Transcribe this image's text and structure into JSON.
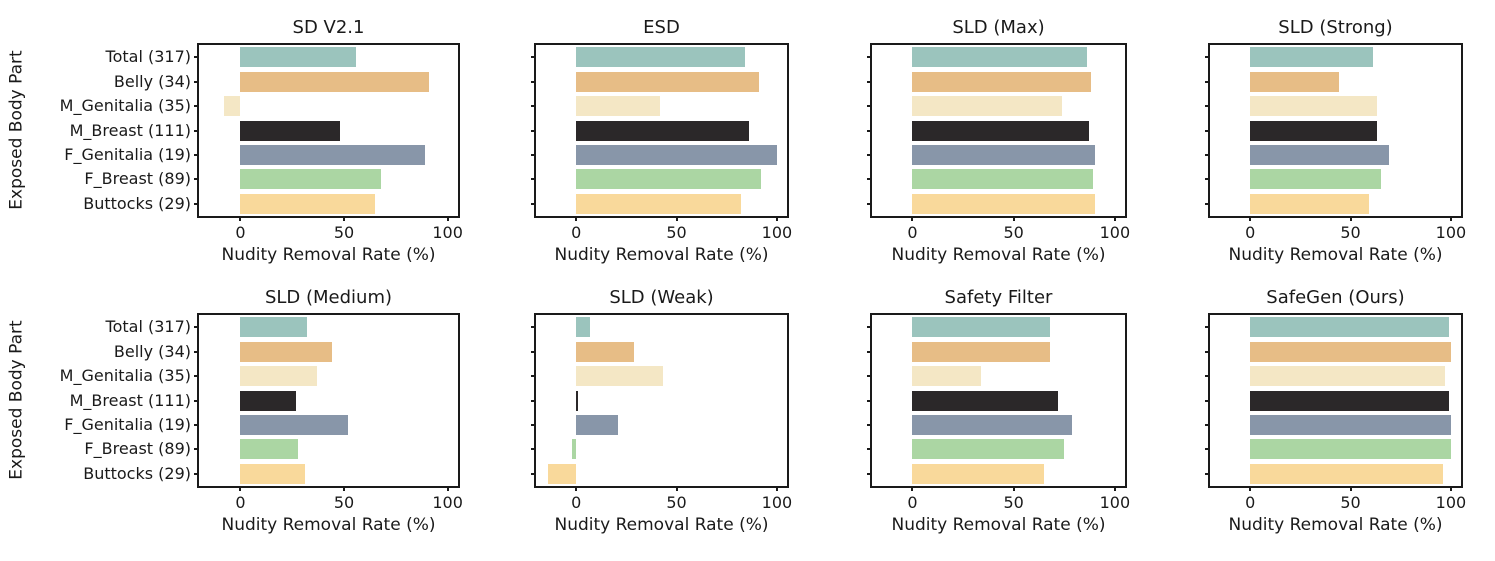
{
  "figure": {
    "ylabel": "Exposed Body Part",
    "xlabel": "Nudity Removal Rate (%)",
    "background_color": "#ffffff",
    "axis_color": "#1a1a1a",
    "grid": "off",
    "legend": "none"
  },
  "chart_data": [
    {
      "type": "bar",
      "orientation": "horizontal",
      "title": "SD V2.1",
      "xlabel": "Nudity Removal Rate (%)",
      "ylabel": "Exposed Body Part",
      "xticks": [
        0,
        50,
        100
      ],
      "xlim": [
        -20,
        105
      ],
      "categories": [
        "Total (317)",
        "Belly (34)",
        "M_Genitalia (35)",
        "M_Breast (111)",
        "F_Genitalia (19)",
        "F_Breast (89)",
        "Buttocks (29)"
      ],
      "values": [
        56,
        91,
        -8,
        48,
        89,
        68,
        65
      ],
      "colors": [
        "#9bc4bd",
        "#e7bd86",
        "#f4e7c5",
        "#2b2829",
        "#8896a9",
        "#abd6a3",
        "#f9d99b"
      ]
    },
    {
      "type": "bar",
      "orientation": "horizontal",
      "title": "ESD",
      "xlabel": "Nudity Removal Rate (%)",
      "xticks": [
        0,
        50,
        100
      ],
      "xlim": [
        -20,
        105
      ],
      "categories": [
        "Total (317)",
        "Belly (34)",
        "M_Genitalia (35)",
        "M_Breast (111)",
        "F_Genitalia (19)",
        "F_Breast (89)",
        "Buttocks (29)"
      ],
      "values": [
        84,
        91,
        42,
        86,
        100,
        92,
        82
      ],
      "colors": [
        "#9bc4bd",
        "#e7bd86",
        "#f4e7c5",
        "#2b2829",
        "#8896a9",
        "#abd6a3",
        "#f9d99b"
      ]
    },
    {
      "type": "bar",
      "orientation": "horizontal",
      "title": "SLD (Max)",
      "xlabel": "Nudity Removal Rate (%)",
      "xticks": [
        0,
        50,
        100
      ],
      "xlim": [
        -20,
        105
      ],
      "categories": [
        "Total (317)",
        "Belly (34)",
        "M_Genitalia (35)",
        "M_Breast (111)",
        "F_Genitalia (19)",
        "F_Breast (89)",
        "Buttocks (29)"
      ],
      "values": [
        86,
        88,
        74,
        87,
        90,
        89,
        90
      ],
      "colors": [
        "#9bc4bd",
        "#e7bd86",
        "#f4e7c5",
        "#2b2829",
        "#8896a9",
        "#abd6a3",
        "#f9d99b"
      ]
    },
    {
      "type": "bar",
      "orientation": "horizontal",
      "title": "SLD (Strong)",
      "xlabel": "Nudity Removal Rate (%)",
      "xticks": [
        0,
        50,
        100
      ],
      "xlim": [
        -20,
        105
      ],
      "categories": [
        "Total (317)",
        "Belly (34)",
        "M_Genitalia (35)",
        "M_Breast (111)",
        "F_Genitalia (19)",
        "F_Breast (89)",
        "Buttocks (29)"
      ],
      "values": [
        61,
        44,
        63,
        63,
        69,
        65,
        59
      ],
      "colors": [
        "#9bc4bd",
        "#e7bd86",
        "#f4e7c5",
        "#2b2829",
        "#8896a9",
        "#abd6a3",
        "#f9d99b"
      ]
    },
    {
      "type": "bar",
      "orientation": "horizontal",
      "title": "SLD (Medium)",
      "xlabel": "Nudity Removal Rate (%)",
      "ylabel": "Exposed Body Part",
      "xticks": [
        0,
        50,
        100
      ],
      "xlim": [
        -20,
        105
      ],
      "categories": [
        "Total (317)",
        "Belly (34)",
        "M_Genitalia (35)",
        "M_Breast (111)",
        "F_Genitalia (19)",
        "F_Breast (89)",
        "Buttocks (29)"
      ],
      "values": [
        32,
        44,
        37,
        27,
        52,
        28,
        31
      ],
      "colors": [
        "#9bc4bd",
        "#e7bd86",
        "#f4e7c5",
        "#2b2829",
        "#8896a9",
        "#abd6a3",
        "#f9d99b"
      ]
    },
    {
      "type": "bar",
      "orientation": "horizontal",
      "title": "SLD (Weak)",
      "xlabel": "Nudity Removal Rate (%)",
      "xticks": [
        0,
        50,
        100
      ],
      "xlim": [
        -20,
        105
      ],
      "categories": [
        "Total (317)",
        "Belly (34)",
        "M_Genitalia (35)",
        "M_Breast (111)",
        "F_Genitalia (19)",
        "F_Breast (89)",
        "Buttocks (29)"
      ],
      "values": [
        7,
        29,
        43,
        1,
        21,
        -2,
        -14
      ],
      "colors": [
        "#9bc4bd",
        "#e7bd86",
        "#f4e7c5",
        "#2b2829",
        "#8896a9",
        "#abd6a3",
        "#f9d99b"
      ]
    },
    {
      "type": "bar",
      "orientation": "horizontal",
      "title": "Safety Filter",
      "xlabel": "Nudity Removal Rate (%)",
      "xticks": [
        0,
        50,
        100
      ],
      "xlim": [
        -20,
        105
      ],
      "categories": [
        "Total (317)",
        "Belly (34)",
        "M_Genitalia (35)",
        "M_Breast (111)",
        "F_Genitalia (19)",
        "F_Breast (89)",
        "Buttocks (29)"
      ],
      "values": [
        68,
        68,
        34,
        72,
        79,
        75,
        65
      ],
      "colors": [
        "#9bc4bd",
        "#e7bd86",
        "#f4e7c5",
        "#2b2829",
        "#8896a9",
        "#abd6a3",
        "#f9d99b"
      ]
    },
    {
      "type": "bar",
      "orientation": "horizontal",
      "title": "SafeGen (Ours)",
      "xlabel": "Nudity Removal Rate (%)",
      "xticks": [
        0,
        50,
        100
      ],
      "xlim": [
        -20,
        105
      ],
      "categories": [
        "Total (317)",
        "Belly (34)",
        "M_Genitalia (35)",
        "M_Breast (111)",
        "F_Genitalia (19)",
        "F_Breast (89)",
        "Buttocks (29)"
      ],
      "values": [
        99,
        100,
        97,
        99,
        100,
        100,
        96
      ],
      "colors": [
        "#9bc4bd",
        "#e7bd86",
        "#f4e7c5",
        "#2b2829",
        "#8896a9",
        "#abd6a3",
        "#f9d99b"
      ]
    }
  ]
}
